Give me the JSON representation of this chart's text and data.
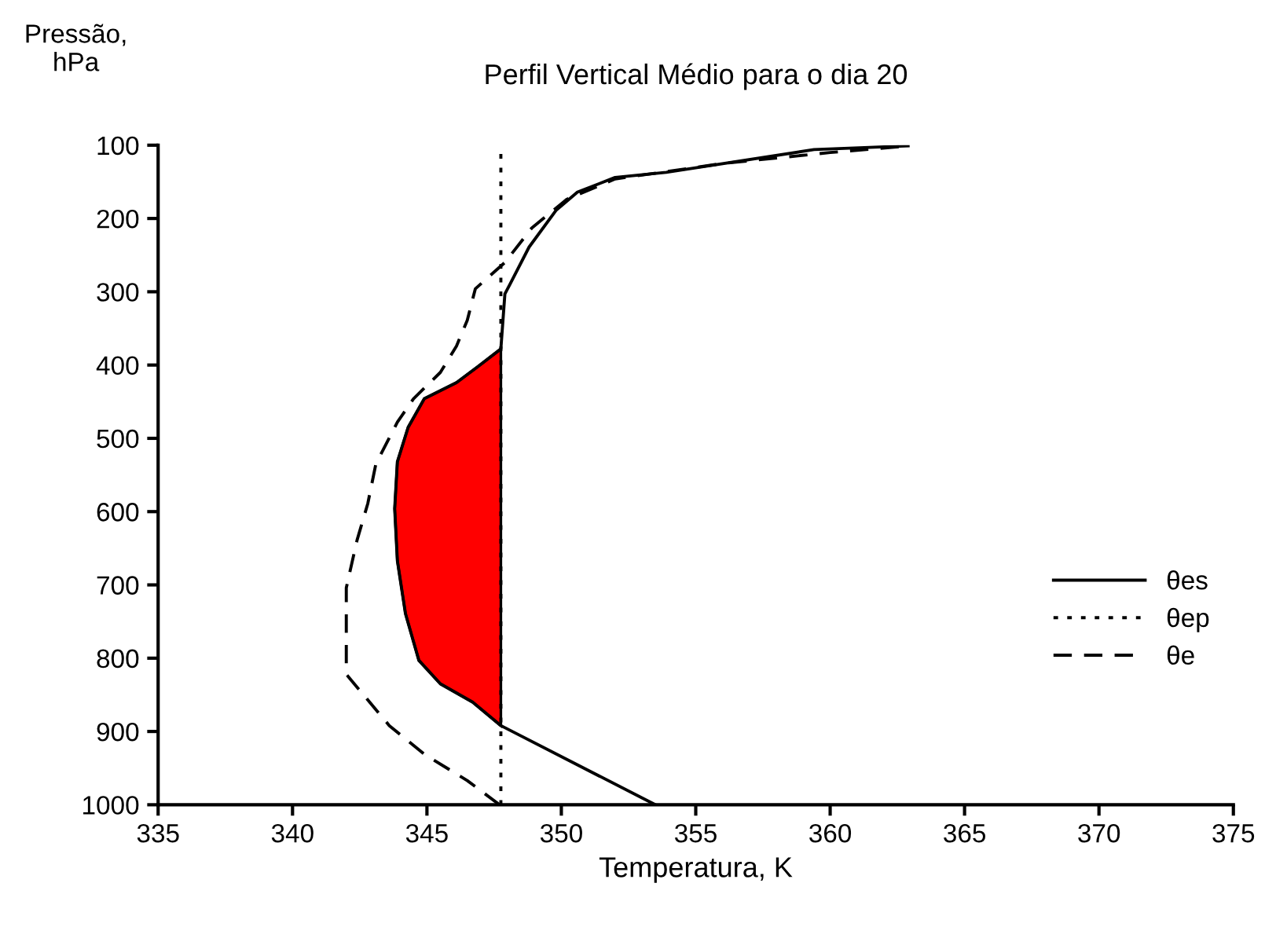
{
  "chart_data": {
    "type": "line",
    "title": "Perfil Vertical Médio para o dia 20",
    "xlabel": "Temperatura, K",
    "ylabel": "Pressão,\nhPa",
    "xlim": [
      335,
      375
    ],
    "xticks": [
      335,
      340,
      345,
      350,
      355,
      360,
      365,
      370,
      375
    ],
    "ylim": [
      1000,
      100
    ],
    "yticks": [
      100,
      200,
      300,
      400,
      500,
      600,
      700,
      800,
      900,
      1000
    ],
    "grid": false,
    "legend": "right",
    "marker": "none",
    "series": [
      {
        "type": "area",
        "color": "#ff0000",
        "x": [
          347.75,
          346.7,
          345.5,
          344.7,
          344.2,
          343.9,
          343.8,
          343.9,
          344.3,
          344.9,
          346.1,
          346.9,
          347.75
        ],
        "values": [
          892,
          860,
          835,
          803,
          739,
          667,
          596,
          532,
          485,
          446,
          424,
          402,
          378
        ]
      },
      {
        "name": "θes",
        "line_style": "solid",
        "color": "#000000",
        "x": [
          353.5,
          347.75,
          346.7,
          345.5,
          344.7,
          344.2,
          343.9,
          343.8,
          343.9,
          344.3,
          344.9,
          346.1,
          346.9,
          347.75,
          347.9,
          348.1,
          348.8,
          349.8,
          350.6,
          352.0,
          353.9,
          359.4,
          362.9
        ],
        "values": [
          1000,
          892,
          860,
          835,
          803,
          739,
          667,
          596,
          532,
          485,
          446,
          424,
          402,
          378,
          303,
          289,
          239,
          189,
          164,
          144,
          137,
          106,
          101
        ]
      },
      {
        "name": "θep",
        "line_style": "dotted",
        "color": "#000000",
        "x": [
          347.75,
          347.75
        ],
        "values": [
          1000,
          100
        ]
      },
      {
        "name": "θe",
        "line_style": "dashed",
        "color": "#000000",
        "x": [
          347.7,
          346.5,
          344.9,
          343.6,
          342.0,
          342.0,
          342.0,
          342.4,
          342.8,
          343.1,
          343.9,
          344.5,
          345.5,
          346.1,
          346.5,
          346.8,
          347.9,
          348.9,
          350.2,
          352.0,
          356.0,
          360.0,
          362.9
        ],
        "values": [
          1000,
          967,
          931,
          892,
          822,
          747,
          704,
          639,
          589,
          535,
          478,
          446,
          410,
          374,
          339,
          296,
          260,
          213,
          174,
          146,
          125,
          110,
          101
        ]
      }
    ]
  }
}
